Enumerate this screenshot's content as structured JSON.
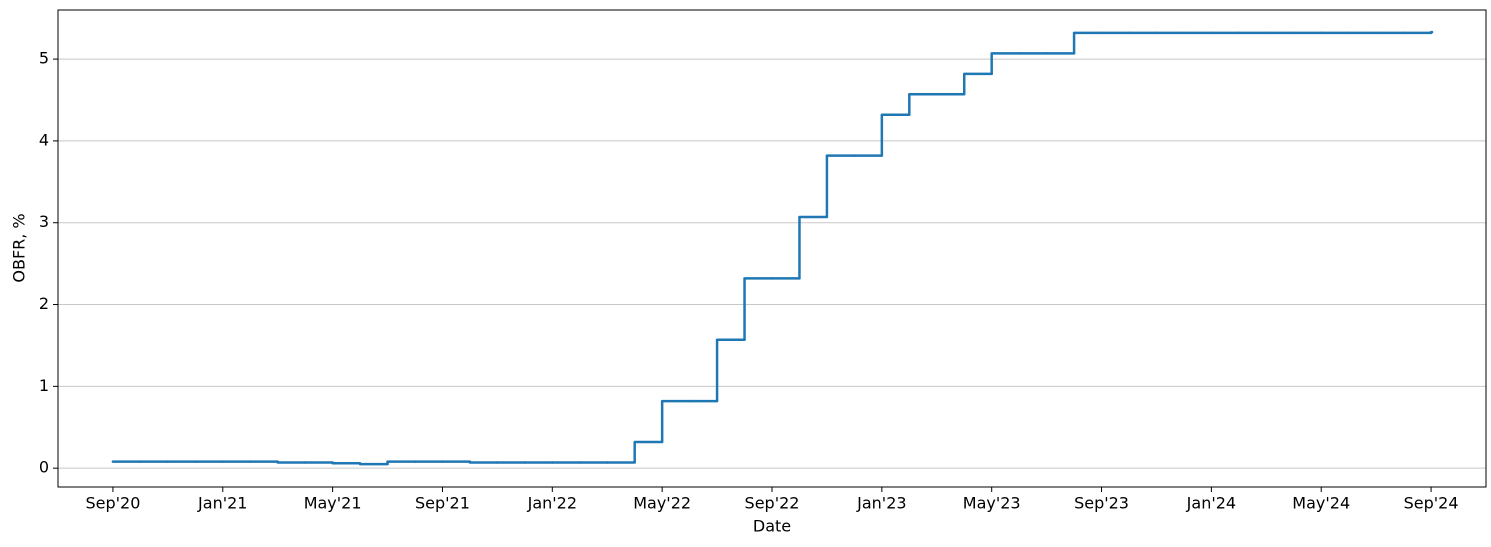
{
  "chart_data": {
    "type": "line",
    "x_label": "Date",
    "y_label": "OBFR, %",
    "x": [
      "2020-09",
      "2020-10",
      "2020-11",
      "2020-12",
      "2021-01",
      "2021-02",
      "2021-03",
      "2021-04",
      "2021-05",
      "2021-06",
      "2021-07",
      "2021-08",
      "2021-09",
      "2021-10",
      "2021-11",
      "2021-12",
      "2022-01",
      "2022-02",
      "2022-03",
      "2022-04",
      "2022-05",
      "2022-06",
      "2022-07",
      "2022-08",
      "2022-09",
      "2022-10",
      "2022-11",
      "2022-12",
      "2023-01",
      "2023-02",
      "2023-03",
      "2023-04",
      "2023-05",
      "2023-06",
      "2023-07",
      "2023-08",
      "2023-09",
      "2023-10",
      "2023-11",
      "2023-12",
      "2024-01",
      "2024-02",
      "2024-03",
      "2024-04",
      "2024-05",
      "2024-06",
      "2024-07",
      "2024-08",
      "2024-09"
    ],
    "series": [
      {
        "name": "OBFR",
        "color": "#1f77b4",
        "values": [
          0.08,
          0.08,
          0.08,
          0.08,
          0.08,
          0.08,
          0.07,
          0.07,
          0.06,
          0.05,
          0.08,
          0.08,
          0.08,
          0.07,
          0.07,
          0.07,
          0.07,
          0.07,
          0.07,
          0.32,
          0.82,
          0.82,
          1.57,
          2.32,
          2.32,
          3.07,
          3.82,
          3.82,
          4.32,
          4.57,
          4.57,
          4.82,
          5.07,
          5.07,
          5.07,
          5.32,
          5.32,
          5.32,
          5.32,
          5.32,
          5.32,
          5.32,
          5.32,
          5.32,
          5.32,
          5.32,
          5.32,
          5.32,
          5.33
        ]
      }
    ],
    "xlim": [
      "2020-07",
      "2024-11"
    ],
    "xticks": [
      {
        "value": "2020-09",
        "label": "Sep'20"
      },
      {
        "value": "2021-01",
        "label": "Jan'21"
      },
      {
        "value": "2021-05",
        "label": "May'21"
      },
      {
        "value": "2021-09",
        "label": "Sep'21"
      },
      {
        "value": "2022-01",
        "label": "Jan'22"
      },
      {
        "value": "2022-05",
        "label": "May'22"
      },
      {
        "value": "2022-09",
        "label": "Sep'22"
      },
      {
        "value": "2023-01",
        "label": "Jan'23"
      },
      {
        "value": "2023-05",
        "label": "May'23"
      },
      {
        "value": "2023-09",
        "label": "Sep'23"
      },
      {
        "value": "2024-01",
        "label": "Jan'24"
      },
      {
        "value": "2024-05",
        "label": "May'24"
      },
      {
        "value": "2024-09",
        "label": "Sep'24"
      }
    ],
    "ylim": [
      -0.23,
      5.6
    ],
    "yticks": [
      0,
      1,
      2,
      3,
      4,
      5
    ],
    "grid": true
  }
}
